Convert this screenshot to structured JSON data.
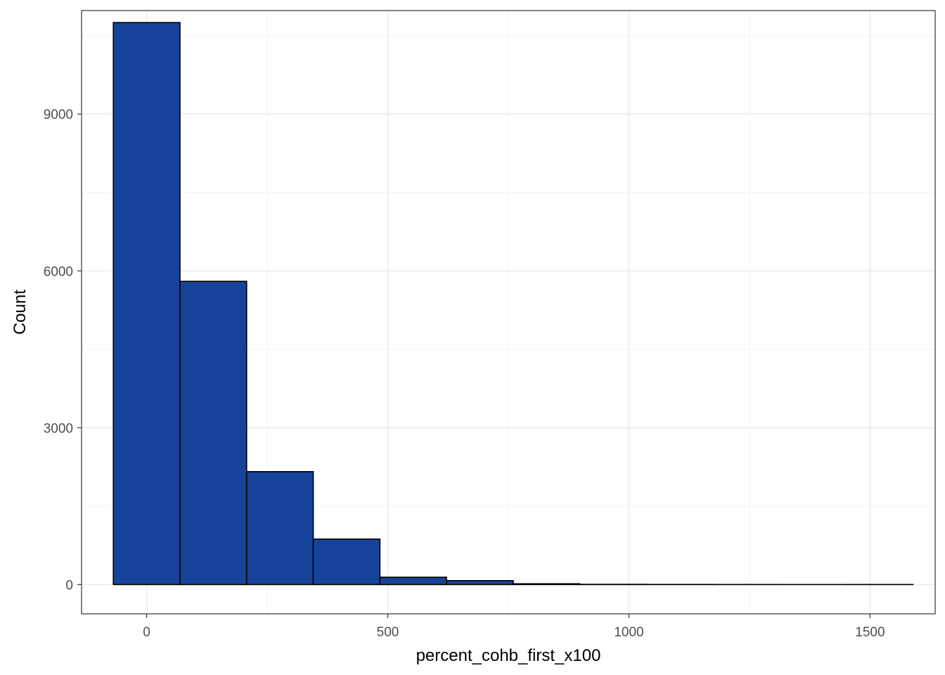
{
  "chart_data": {
    "type": "bar",
    "subtype": "histogram",
    "title": "",
    "xlabel": "percent_cohb_first_x100",
    "ylabel": "Count",
    "xlim": [
      -135,
      1635
    ],
    "ylim": [
      -560,
      10980
    ],
    "x_ticks": [
      0,
      500,
      1000,
      1500
    ],
    "y_ticks": [
      0,
      3000,
      6000,
      9000
    ],
    "x_tick_labels": [
      "0",
      "500",
      "1000",
      "1500"
    ],
    "y_tick_labels": [
      "0",
      "3000",
      "6000",
      "9000"
    ],
    "grid": true,
    "legend": "none",
    "bin_width": 138.18,
    "bins": [
      {
        "start": -69.09,
        "end": 69.09,
        "count": 10750
      },
      {
        "start": 69.09,
        "end": 207.27,
        "count": 5800
      },
      {
        "start": 207.27,
        "end": 345.45,
        "count": 2160
      },
      {
        "start": 345.45,
        "end": 483.64,
        "count": 870
      },
      {
        "start": 483.64,
        "end": 621.82,
        "count": 140
      },
      {
        "start": 621.82,
        "end": 760.0,
        "count": 75
      },
      {
        "start": 760.0,
        "end": 898.18,
        "count": 15
      },
      {
        "start": 898.18,
        "end": 1036.36,
        "count": 4
      },
      {
        "start": 1036.36,
        "end": 1174.55,
        "count": 2
      },
      {
        "start": 1174.55,
        "end": 1312.73,
        "count": 1
      },
      {
        "start": 1312.73,
        "end": 1450.91,
        "count": 0
      },
      {
        "start": 1450.91,
        "end": 1589.09,
        "count": 1
      }
    ]
  },
  "colors": {
    "bar_fill": "#17449b",
    "bar_stroke": "#000000",
    "grid_major": "#ebebeb",
    "grid_minor": "#f4f4f4",
    "panel_border": "#333333",
    "tick_text": "#4d4d4d"
  }
}
